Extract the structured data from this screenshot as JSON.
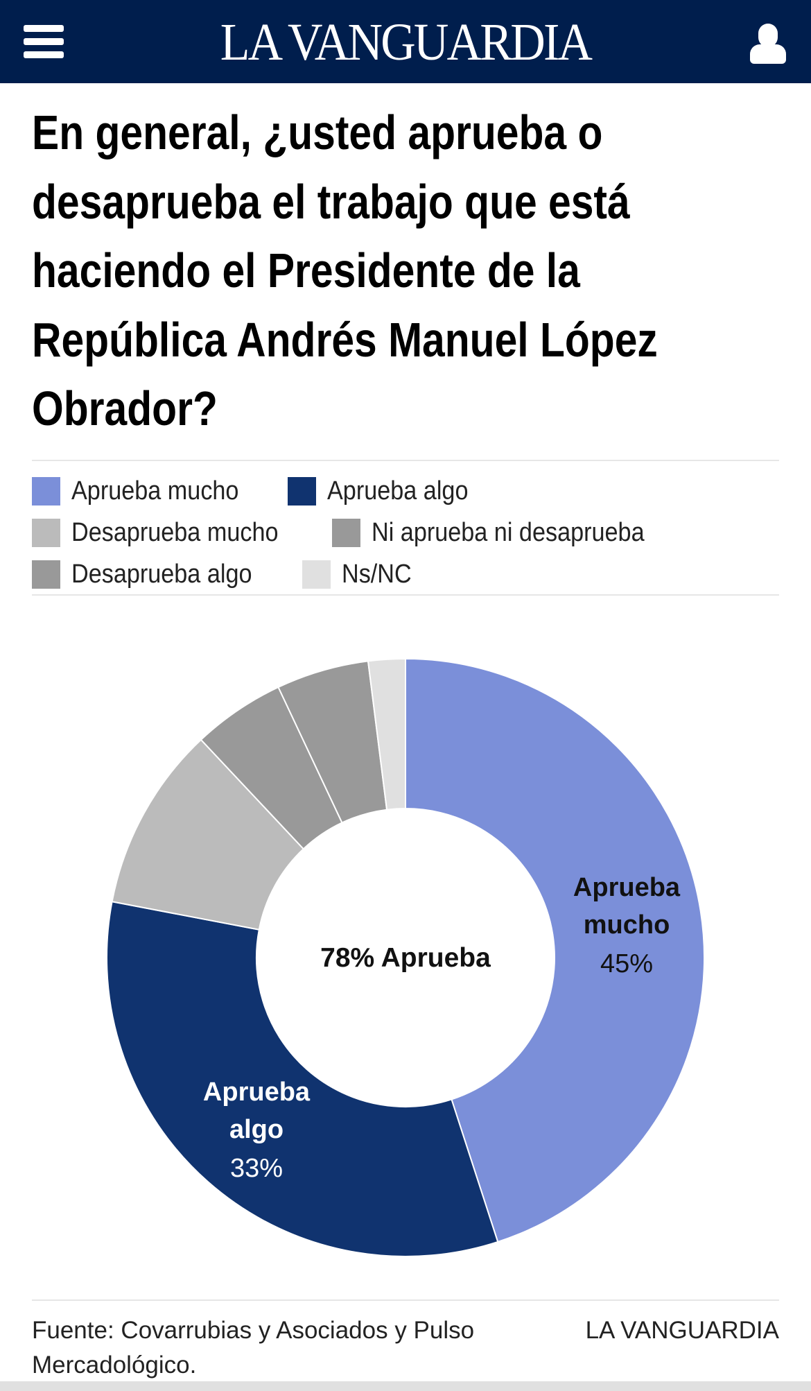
{
  "header": {
    "logo": "LA VANGUARDIA",
    "menu_icon": "hamburger-icon",
    "user_icon": "user-icon",
    "background": "#001e4d"
  },
  "title_lines": [
    "En general, ¿usted aprueba o",
    "desaprueba el trabajo que está",
    "haciendo el Presidente de la",
    "República Andrés Manuel López",
    "Obrador?"
  ],
  "chart_data": {
    "type": "pie",
    "donut": true,
    "title": "En general, ¿usted aprueba o desaprueba el trabajo que está haciendo el Presidente de la República Andrés Manuel López Obrador?",
    "center_label": "78% Aprueba",
    "legend_placement": "top",
    "legend": [
      {
        "name": "Aprueba mucho",
        "color": "#7b8fd9"
      },
      {
        "name": "Aprueba algo",
        "color": "#10336f"
      },
      {
        "name": "Desaprueba mucho",
        "color": "#bbbbbb"
      },
      {
        "name": "Ni aprueba ni desaprueba",
        "color": "#999999"
      },
      {
        "name": "Desaprueba algo",
        "color": "#999999"
      },
      {
        "name": "Ns/NC",
        "color": "#e0e0e0"
      }
    ],
    "slices": [
      {
        "name": "Aprueba mucho",
        "value": 45,
        "color": "#7b8fd9",
        "label_line1": "Aprueba",
        "label_line2": "mucho",
        "label_value": "45%",
        "label_color": "#111111"
      },
      {
        "name": "Aprueba algo",
        "value": 33,
        "color": "#10336f",
        "label_line1": "Aprueba",
        "label_line2": "algo",
        "label_value": "33%",
        "label_color": "#ffffff"
      },
      {
        "name": "Desaprueba mucho",
        "value": 10,
        "color": "#bbbbbb"
      },
      {
        "name": "Desaprueba algo",
        "value": 5,
        "color": "#999999"
      },
      {
        "name": "Ni aprueba ni desaprueba",
        "value": 5,
        "color": "#999999"
      },
      {
        "name": "Ns/NC",
        "value": 2,
        "color": "#e0e0e0"
      }
    ]
  },
  "footer": {
    "source": "Fuente: Covarrubias y Asociados y Pulso Mercadológico.",
    "brand": "LA VANGUARDIA"
  }
}
